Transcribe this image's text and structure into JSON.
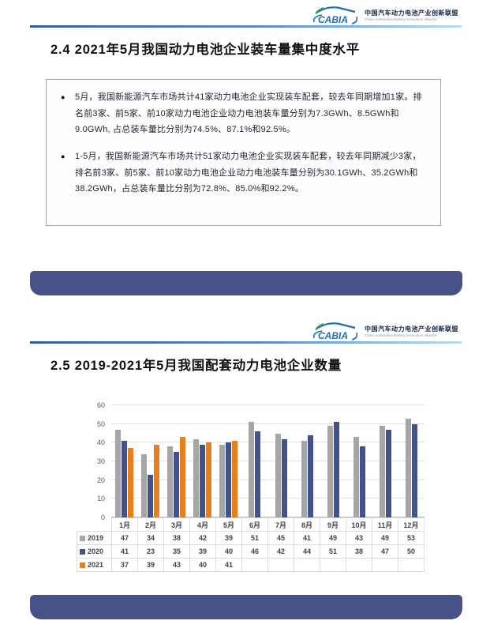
{
  "brand": {
    "logo_text": "CABIA",
    "name_cn": "中国汽车动力电池产业创新联盟",
    "name_en": "China Automotive Battery Innovation Alliance"
  },
  "slide1": {
    "title": "2.4 2021年5月我国动力电池企业装车量集中度水平",
    "bullet_marker": "●",
    "bullets": [
      "5月，我国新能源汽车市场共计41家动力电池企业实现装车配套，较去年同期增加1家。排名前3家、前5家、前10家动力电池企业动力电池装车量分别为7.3GWh、8.5GWh和9.0GWh, 占总装车量比分别为74.5%、87.1%和92.5%。",
      "1-5月，我国新能源汽车市场共计51家动力电池企业实现装车配套，较去年同期减少3家，排名前3家、前5家、前10家动力电池企业动力电池装车量分别为30.1GWh、35.2GWh和38.2GWh，占总装车量比分别为72.8%、85.0%和92.2%。"
    ]
  },
  "slide2": {
    "title": "2.5 2019-2021年5月我国配套动力电池企业数量"
  },
  "chart_data": {
    "type": "bar",
    "categories": [
      "1月",
      "2月",
      "3月",
      "4月",
      "5月",
      "6月",
      "7月",
      "8月",
      "9月",
      "10月",
      "11月",
      "12月"
    ],
    "series": [
      {
        "name": "2019",
        "color": "#a6a6a6",
        "values": [
          47,
          34,
          38,
          42,
          39,
          51,
          45,
          41,
          49,
          43,
          49,
          53
        ]
      },
      {
        "name": "2020",
        "color": "#42528a",
        "values": [
          41,
          23,
          35,
          39,
          40,
          46,
          42,
          44,
          51,
          38,
          47,
          50
        ]
      },
      {
        "name": "2021",
        "color": "#e87f1e",
        "values": [
          37,
          39,
          43,
          40,
          41,
          null,
          null,
          null,
          null,
          null,
          null,
          null
        ]
      }
    ],
    "title": "",
    "xlabel": "",
    "ylabel": "",
    "ylim": [
      0,
      60
    ],
    "yticks": [
      0,
      10,
      20,
      30,
      40,
      50,
      60
    ],
    "grid": true,
    "legend_position": "table-left"
  },
  "colors": {
    "band": "#475288",
    "logo_blue": "#1f6db5",
    "logo_green": "#3aa655"
  }
}
